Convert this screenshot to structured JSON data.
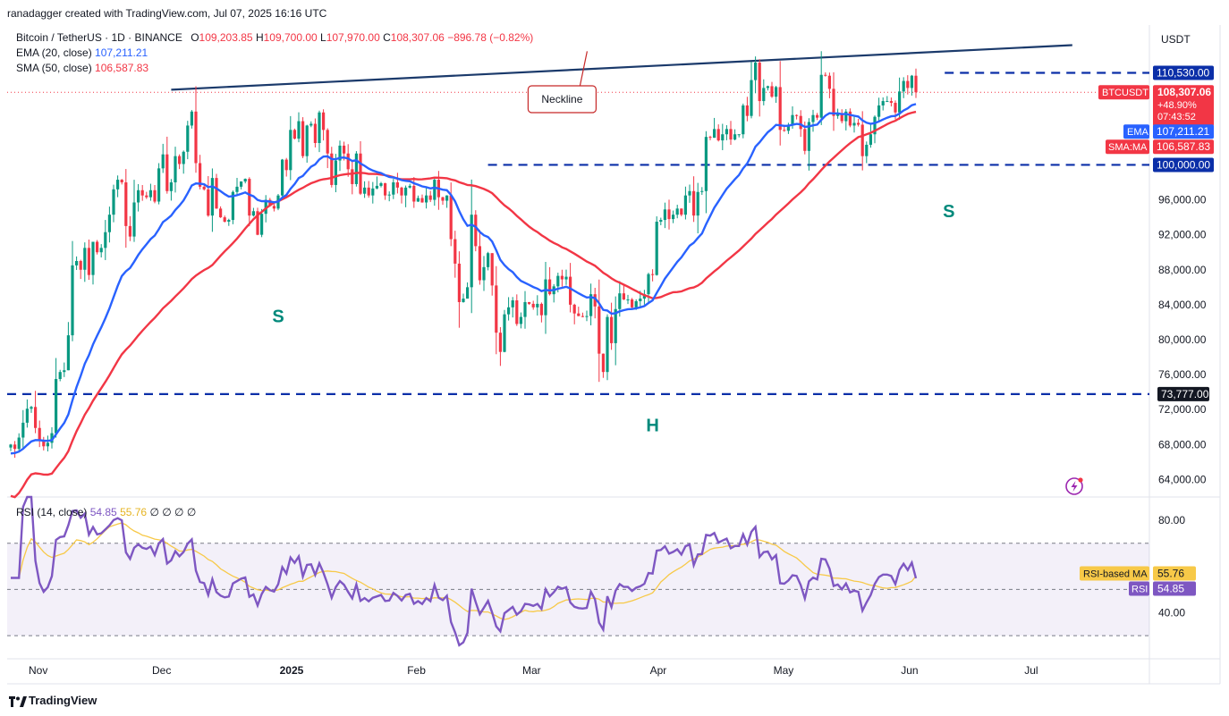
{
  "header": {
    "attribution": "ranadagger created with TradingView.com, Jul 07, 2025 16:16 UTC",
    "symbol": "Bitcoin / TetherUS · 1D · BINANCE",
    "ohlc": {
      "o_label": "O",
      "o": "109,203.85",
      "h_label": "H",
      "h": "109,700.00",
      "l_label": "L",
      "l": "107,970.00",
      "c_label": "C",
      "c": "108,307.06",
      "change": "−896.78 (−0.82%)"
    },
    "ema_label": "EMA (20, close)",
    "ema_value": "107,211.21",
    "sma_label": "SMA (50, close)",
    "sma_value": "106,587.83"
  },
  "rsi_legend": {
    "label": "RSI (14, close)",
    "rsi": "54.85",
    "ma": "55.76",
    "extras": [
      "∅",
      "∅",
      "∅",
      "∅"
    ]
  },
  "footer": {
    "brand": "TradingView"
  },
  "colors": {
    "up": "#089981",
    "down": "#f23645",
    "ema": "#2962ff",
    "sma": "#f23645",
    "rsi": "#7e57c2",
    "rsi_ma": "#f7c948",
    "trendline": "#1b3a6b",
    "annotation": "#00897b"
  },
  "chart_data": [
    {
      "type": "candlestick",
      "title": "Bitcoin / TetherUS · 1D · BINANCE",
      "currency": "USDT",
      "ylim": [
        62000,
        116000
      ],
      "y_ticks": [
        "64,000.00",
        "68,000.00",
        "72,000.00",
        "76,000.00",
        "80,000.00",
        "84,000.00",
        "88,000.00",
        "92,000.00",
        "96,000.00"
      ],
      "x_ticks": [
        "Nov",
        "Dec",
        "2025",
        "Feb",
        "Mar",
        "Apr",
        "May",
        "Jun",
        "Jul"
      ],
      "price_labels": [
        {
          "text": "110,530.00",
          "value": 110530,
          "kind": "level"
        },
        {
          "text": "BTCUSDT",
          "value": 108307.06,
          "kind": "symbol"
        },
        {
          "text": "108,307.06",
          "value": 108307.06,
          "kind": "last"
        },
        {
          "text": "+48.90%",
          "kind": "last-sub"
        },
        {
          "text": "07:43:52",
          "kind": "last-sub"
        },
        {
          "text": "EMA",
          "value": 107211.21,
          "kind": "ema-name"
        },
        {
          "text": "107,211.21",
          "value": 107211.21,
          "kind": "ema"
        },
        {
          "text": "SMA:MA",
          "value": 106587.83,
          "kind": "sma-name"
        },
        {
          "text": "106,587.83",
          "value": 106587.83,
          "kind": "sma"
        },
        {
          "text": "100,000.00",
          "value": 100000,
          "kind": "level"
        },
        {
          "text": "73,777.00",
          "value": 73777,
          "kind": "level-dark"
        }
      ],
      "horizontal_levels": [
        110530,
        100000,
        73777
      ],
      "neckline": {
        "from": {
          "date": "2024-12-05",
          "price": 108600
        },
        "to": {
          "date": "2025-07-12",
          "price": 113700
        },
        "label": "Neckline"
      },
      "annotations": [
        {
          "text": "S",
          "date": "2024-12-31",
          "price": 82000
        },
        {
          "text": "H",
          "date": "2025-04-01",
          "price": 69500
        },
        {
          "text": "S",
          "date": "2025-06-12",
          "price": 94000
        }
      ],
      "close_series_start": "2024-10-27",
      "close": [
        68000,
        67500,
        68800,
        70500,
        72100,
        72300,
        69900,
        68500,
        67800,
        68200,
        69300,
        75500,
        76300,
        76500,
        80500,
        88500,
        89000,
        88000,
        90500,
        87400,
        91200,
        90000,
        90500,
        92300,
        94300,
        97200,
        98300,
        98000,
        93000,
        91800,
        95700,
        97100,
        96500,
        96300,
        97100,
        95800,
        99600,
        101200,
        97000,
        98000,
        101000,
        100100,
        101500,
        104500,
        106100,
        100200,
        97500,
        97200,
        94200,
        98500,
        95000,
        94000,
        93500,
        93700,
        96900,
        97500,
        98100,
        98400,
        94200,
        94700,
        92000,
        94400,
        96000,
        95300,
        95000,
        96500,
        100600,
        99400,
        104000,
        103000,
        105000,
        101000,
        104500,
        104700,
        102500,
        106000,
        104000,
        101300,
        97700,
        100500,
        102200,
        101300,
        99500,
        97800,
        101300,
        96700,
        97400,
        96500,
        97300,
        97600,
        97900,
        96500,
        96600,
        98000,
        97400,
        96500,
        97400,
        97600,
        95800,
        96200,
        95700,
        96500,
        96000,
        98300,
        96300,
        95900,
        96500,
        91500,
        88700,
        84300,
        84700,
        86000,
        94300,
        90700,
        86800,
        88300,
        89900,
        86200,
        80800,
        78600,
        82900,
        83700,
        84500,
        81800,
        82600,
        84300,
        84100,
        83700,
        84100,
        82800,
        86900,
        85200,
        86100,
        87300,
        86900,
        87200,
        84000,
        83000,
        82700,
        82600,
        82700,
        85200,
        83800,
        78400,
        76300,
        82600,
        79600,
        83500,
        85300,
        84600,
        84600,
        83700,
        84400,
        84700,
        85200,
        87500,
        87400,
        93500,
        93700,
        94900,
        93800,
        94300,
        95000,
        94300,
        96500,
        97000,
        94200,
        96900,
        97000,
        103200,
        103100,
        104100,
        102800,
        103500,
        104100,
        102900,
        103500,
        103500,
        106800,
        105600,
        109700,
        111700,
        107300,
        108800,
        109000,
        107800,
        108900,
        104000,
        103900,
        104600,
        105700,
        105600,
        104100,
        101600,
        104900,
        105700,
        105400,
        110300,
        110200,
        108700,
        105600,
        105900,
        105000,
        106100,
        104500,
        104800,
        104600,
        101000,
        102300,
        103500,
        105500,
        106800,
        107300,
        107300,
        107100,
        106000,
        108400,
        109600,
        108800,
        110200,
        108300
      ]
    },
    {
      "type": "line",
      "title": "RSI (14, close)",
      "ylim": [
        20,
        90
      ],
      "y_ticks": [
        "40.00",
        "80.00"
      ],
      "bands": [
        30,
        50,
        70
      ],
      "price_labels": [
        {
          "text": "RSI-based MA",
          "kind": "ma-name"
        },
        {
          "text": "55.76",
          "value": 55.76,
          "kind": "ma"
        },
        {
          "text": "RSI",
          "kind": "rsi-name"
        },
        {
          "text": "54.85",
          "value": 54.85,
          "kind": "rsi"
        }
      ],
      "series": [
        {
          "name": "RSI"
        },
        {
          "name": "RSI-based MA"
        }
      ],
      "latest": {
        "rsi": 54.85,
        "ma": 55.76
      }
    }
  ]
}
